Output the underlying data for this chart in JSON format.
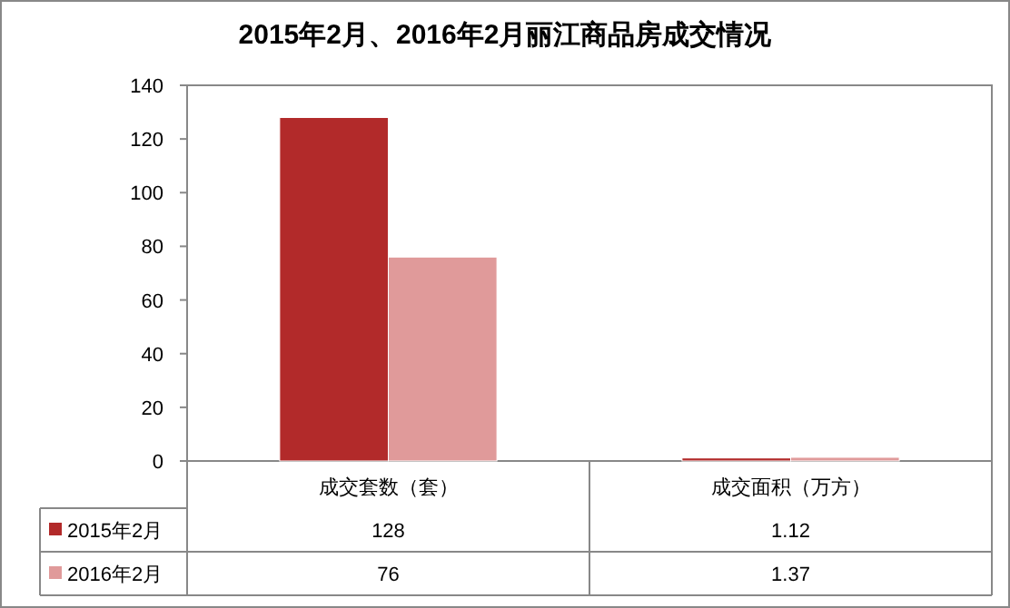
{
  "chart_data": {
    "type": "bar",
    "title": "2015年2月、2016年2月丽江商品房成交情况",
    "categories": [
      "成交套数（套）",
      "成交面积（万方）"
    ],
    "series": [
      {
        "name": "2015年2月",
        "color": "#b22a2a",
        "values": [
          128,
          1.12
        ]
      },
      {
        "name": "2016年2月",
        "color": "#e09a9a",
        "values": [
          76,
          1.37
        ]
      }
    ],
    "ylim": [
      0,
      140
    ],
    "yticks": [
      0,
      20,
      40,
      60,
      80,
      100,
      120,
      140
    ],
    "grid": false,
    "legend": "bottom",
    "data_labels": true
  }
}
